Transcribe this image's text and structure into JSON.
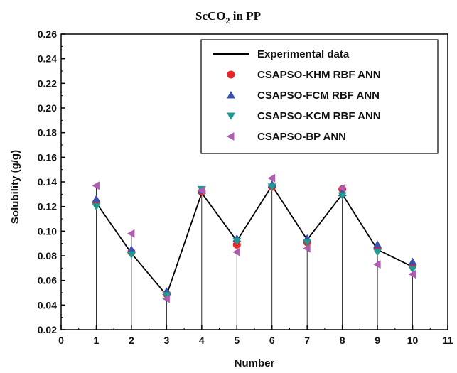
{
  "chart_data": {
    "type": "scatter",
    "title": {
      "main": "ScCO",
      "sub": "2",
      "rest": " in PP"
    },
    "xlabel": "Number",
    "ylabel": "Solubility (g/g)",
    "xlim": [
      0,
      11
    ],
    "ylim": [
      0.02,
      0.26
    ],
    "x_ticks": [
      "0",
      "1",
      "2",
      "3",
      "4",
      "5",
      "6",
      "7",
      "8",
      "9",
      "10",
      "11"
    ],
    "y_ticks": [
      "0.02",
      "0.04",
      "0.06",
      "0.08",
      "0.10",
      "0.12",
      "0.14",
      "0.16",
      "0.18",
      "0.20",
      "0.22",
      "0.24",
      "0.26"
    ],
    "x": [
      1,
      2,
      3,
      4,
      5,
      6,
      7,
      8,
      9,
      10
    ],
    "grid": false,
    "legend_position": "top-right",
    "drop_lines": true,
    "series": [
      {
        "name": "Experimental data",
        "kind": "line",
        "color": "#000000",
        "values": [
          0.123,
          0.082,
          0.048,
          0.131,
          0.092,
          0.137,
          0.093,
          0.13,
          0.085,
          0.071
        ]
      },
      {
        "name": "CSAPSO-KHM RBF ANN",
        "kind": "marker",
        "marker": "circle",
        "color": "#e8262a",
        "values": [
          0.123,
          0.083,
          0.049,
          0.132,
          0.089,
          0.136,
          0.091,
          0.134,
          0.086,
          0.072
        ]
      },
      {
        "name": "CSAPSO-FCM RBF ANN",
        "kind": "marker",
        "marker": "triangle-up",
        "color": "#3a4fb0",
        "values": [
          0.126,
          0.085,
          0.051,
          0.133,
          0.094,
          0.138,
          0.094,
          0.131,
          0.089,
          0.075
        ]
      },
      {
        "name": "CSAPSO-KCM RBF ANN",
        "kind": "marker",
        "marker": "triangle-down",
        "color": "#1f9a93",
        "values": [
          0.12,
          0.081,
          0.048,
          0.134,
          0.092,
          0.136,
          0.091,
          0.129,
          0.083,
          0.069
        ]
      },
      {
        "name": "CSAPSO-BP ANN",
        "kind": "marker",
        "marker": "triangle-left",
        "color": "#b05cb0",
        "values": [
          0.137,
          0.098,
          0.045,
          0.133,
          0.083,
          0.143,
          0.086,
          0.135,
          0.073,
          0.065
        ]
      }
    ]
  }
}
